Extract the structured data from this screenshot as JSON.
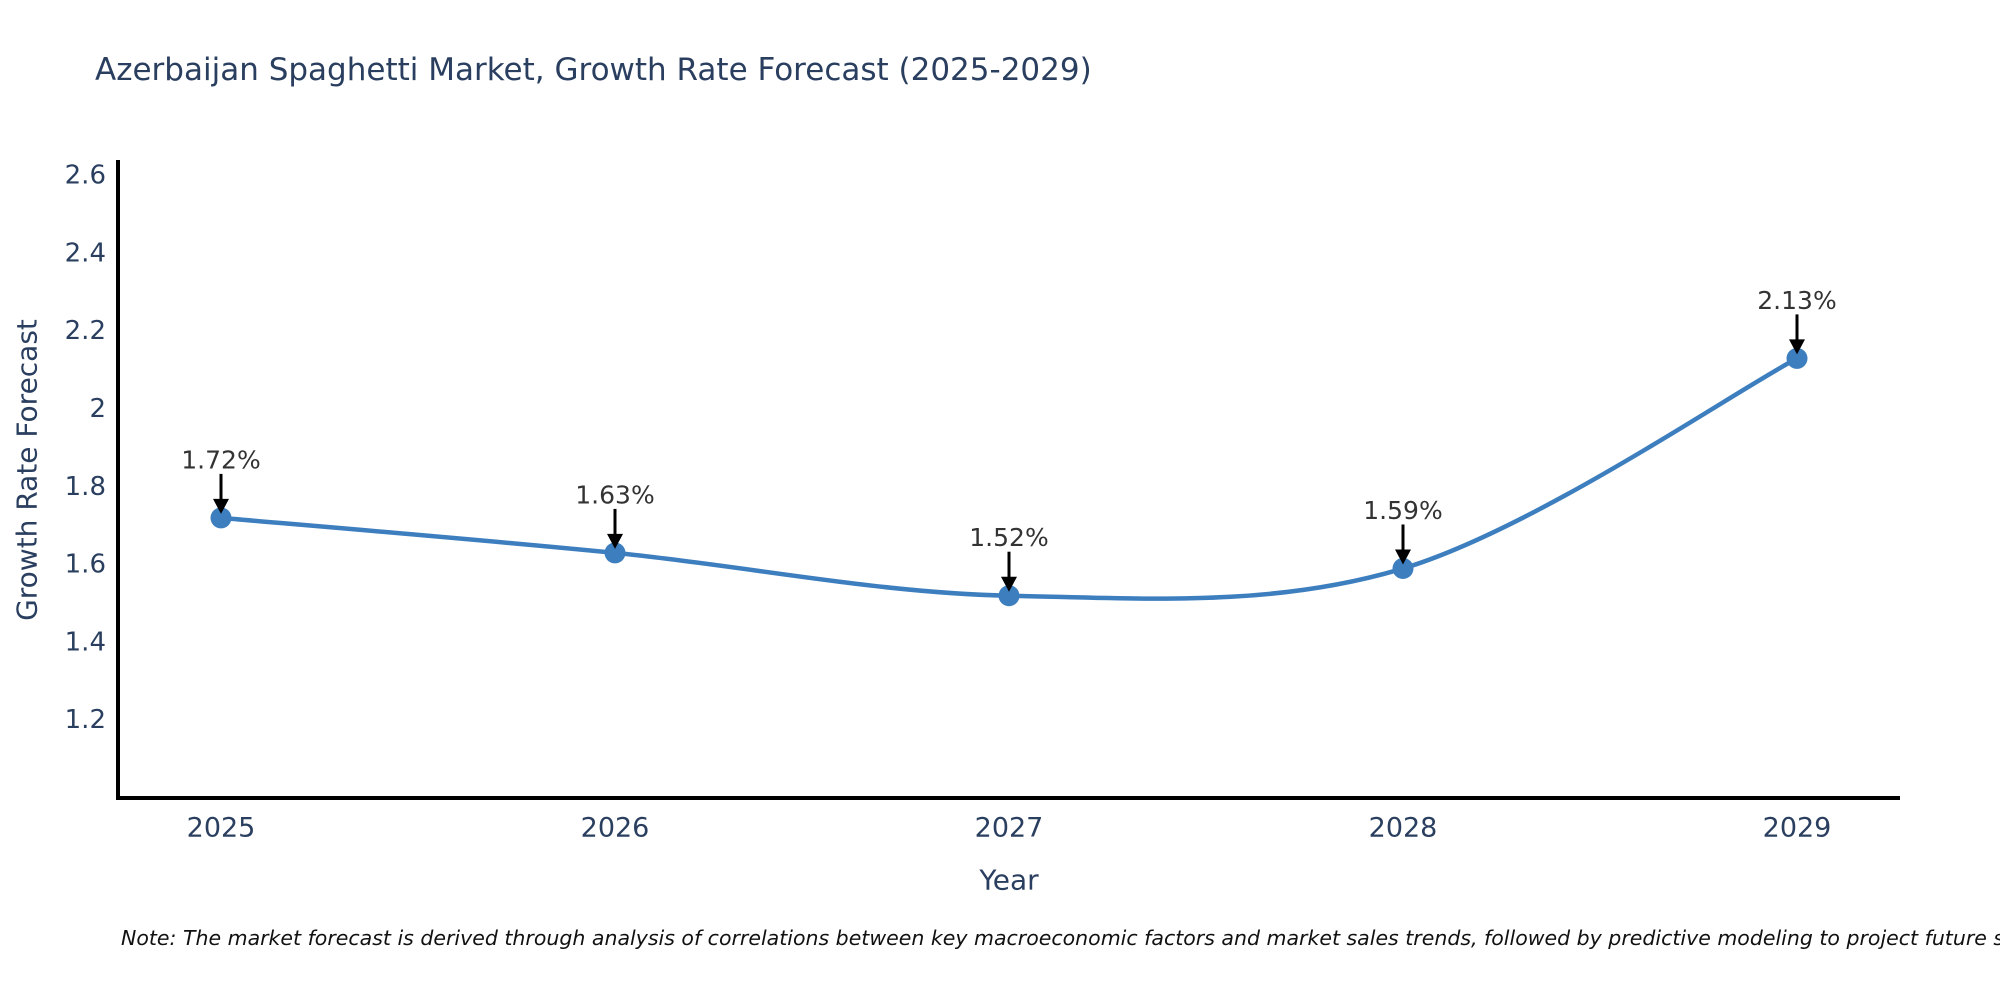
{
  "title": "Azerbaijan Spaghetti Market, Growth Rate Forecast (2025-2029)",
  "note": "Note: The market forecast is derived through analysis of correlations between key macroeconomic factors and market sales trends, followed by predictive modeling to project future sales",
  "chart_data": {
    "type": "line",
    "title": "Azerbaijan Spaghetti Market, Growth Rate Forecast (2025-2029)",
    "xlabel": "Year",
    "ylabel": "Growth Rate Forecast",
    "x": [
      2025,
      2026,
      2027,
      2028,
      2029
    ],
    "values": [
      1.72,
      1.63,
      1.52,
      1.59,
      2.13
    ],
    "point_labels": [
      "1.72%",
      "1.63%",
      "1.52%",
      "1.59%",
      "2.13%"
    ],
    "xtick_labels": [
      "2025",
      "2026",
      "2027",
      "2028",
      "2029"
    ],
    "yticks": [
      1.2,
      1.4,
      1.6,
      1.8,
      2.0,
      2.2,
      2.4,
      2.6
    ],
    "ytick_labels": [
      "1.2",
      "1.4",
      "1.6",
      "1.8",
      "2",
      "2.2",
      "2.4",
      "2.6"
    ],
    "ylim": [
      1.0,
      2.64
    ],
    "grid": false,
    "legend": "none",
    "line_shape": "spline",
    "line_color": "#3d7ebf",
    "marker_color": "#3d7ebf",
    "annotation_text_color": "#333333",
    "annotation_arrow_color": "#000000",
    "axis_color": "#000000",
    "tick_text_color": "#2a3f5f",
    "background_color": "#ffffff"
  }
}
